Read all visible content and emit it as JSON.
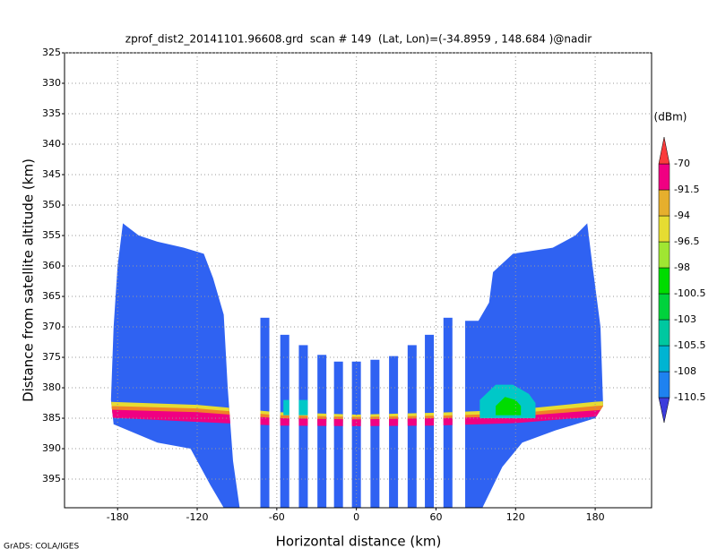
{
  "chart_data": {
    "type": "shaded",
    "title": "zprof_dist2_20141101.96608.grd  scan # 149  (Lat, Lon)=(-34.8959 , 148.684 )@nadir",
    "xlabel": "Horizontal distance (km)",
    "ylabel": "Distance from satellite altitude (km)",
    "footer": "GrADS: COLA/IGES",
    "xlim": [
      -220,
      222.5
    ],
    "ylim": [
      325,
      399.7
    ],
    "xticks": [
      -180,
      -120,
      -60,
      0,
      60,
      120,
      180
    ],
    "yticks": [
      325,
      330,
      335,
      340,
      345,
      350,
      355,
      360,
      365,
      370,
      375,
      380,
      385,
      390,
      395
    ],
    "grid": true,
    "regions": [
      {
        "color": "#2f62f2",
        "x": [
          -176,
          -164,
          -150,
          -130,
          -115,
          -108,
          -100,
          -97,
          -93,
          -88,
          -100,
          -110,
          -125,
          -150,
          -183,
          -185,
          -183,
          -180
        ],
        "y": [
          353,
          355,
          356,
          357,
          358,
          362,
          368,
          380,
          392,
          399.7,
          399.7,
          396,
          390,
          389,
          386,
          382,
          370,
          360
        ]
      },
      {
        "color": "#2f62f2",
        "x": [
          174,
          165,
          148,
          118,
          103,
          100,
          92,
          82,
          82,
          95,
          110,
          125,
          150,
          180,
          186,
          184,
          178
        ],
        "y": [
          353,
          355,
          357,
          358,
          361,
          366,
          369,
          369,
          399.7,
          399.7,
          393,
          389,
          387,
          385,
          383,
          370,
          360
        ]
      }
    ],
    "stripes": {
      "color": "#2f62f2",
      "x": [
        -69,
        -54,
        -40,
        -26,
        -13.5,
        0,
        14,
        28,
        42,
        55,
        69
      ],
      "top": [
        368.5,
        371.3,
        373,
        374.6,
        375.7,
        375.7,
        375.4,
        374.8,
        373,
        371.3,
        368.5
      ]
    },
    "layers": [
      {
        "color": "#e6dc32",
        "x": [
          -186,
          -120,
          -60,
          0,
          60,
          120,
          180,
          188,
          188,
          120,
          60,
          0,
          -60,
          -120,
          -186
        ],
        "y": [
          382.3,
          382.8,
          384,
          384.4,
          384.1,
          383.6,
          382.3,
          382.2,
          384,
          385,
          385.3,
          385.4,
          385.2,
          384.2,
          383.8
        ]
      },
      {
        "color": "#f08228",
        "x": [
          -186,
          -120,
          -60,
          0,
          60,
          120,
          180,
          188,
          188,
          120,
          60,
          0,
          -60,
          -120,
          -186
        ],
        "y": [
          383,
          383.4,
          384.5,
          384.8,
          384.6,
          384.2,
          383,
          382.9,
          384.4,
          385.4,
          385.6,
          385.7,
          385.5,
          384.7,
          384.3
        ]
      },
      {
        "color": "#f00082",
        "x": [
          -186,
          -120,
          -60,
          0,
          60,
          120,
          180,
          188,
          188,
          120,
          60,
          0,
          -60,
          -120,
          -186
        ],
        "y": [
          383.6,
          384,
          385,
          385.2,
          385,
          384.7,
          383.7,
          383.6,
          384.6,
          385.8,
          386.2,
          386.3,
          386.2,
          385.6,
          384.9
        ]
      },
      {
        "color": "#00c8c8",
        "x": [
          93,
          105,
          118,
          130,
          135,
          135,
          93
        ],
        "y": [
          382,
          379.5,
          379.5,
          381,
          382.5,
          385,
          385
        ]
      },
      {
        "color": "#00dc00",
        "x": [
          105,
          112,
          120,
          124,
          124,
          105
        ],
        "y": [
          383,
          381.5,
          382,
          383,
          384.5,
          384.5
        ]
      },
      {
        "color": "#00c8c8",
        "x": [
          -55,
          -35,
          -35,
          -55
        ],
        "y": [
          382,
          382,
          384.5,
          384.5
        ]
      }
    ],
    "colorbar": {
      "unit": "(dBm)",
      "levels": [
        -110.5,
        -108,
        -105.5,
        -103,
        -100.5,
        -98,
        -96.5,
        -94,
        -91.5,
        -70
      ],
      "colors": [
        "#3c3cdc",
        "#1e82f0",
        "#00b4d2",
        "#00c8a0",
        "#00d23c",
        "#00dc00",
        "#a0e632",
        "#e6dc32",
        "#e6af2d",
        "#f00082",
        "#fa3c3c"
      ]
    }
  }
}
